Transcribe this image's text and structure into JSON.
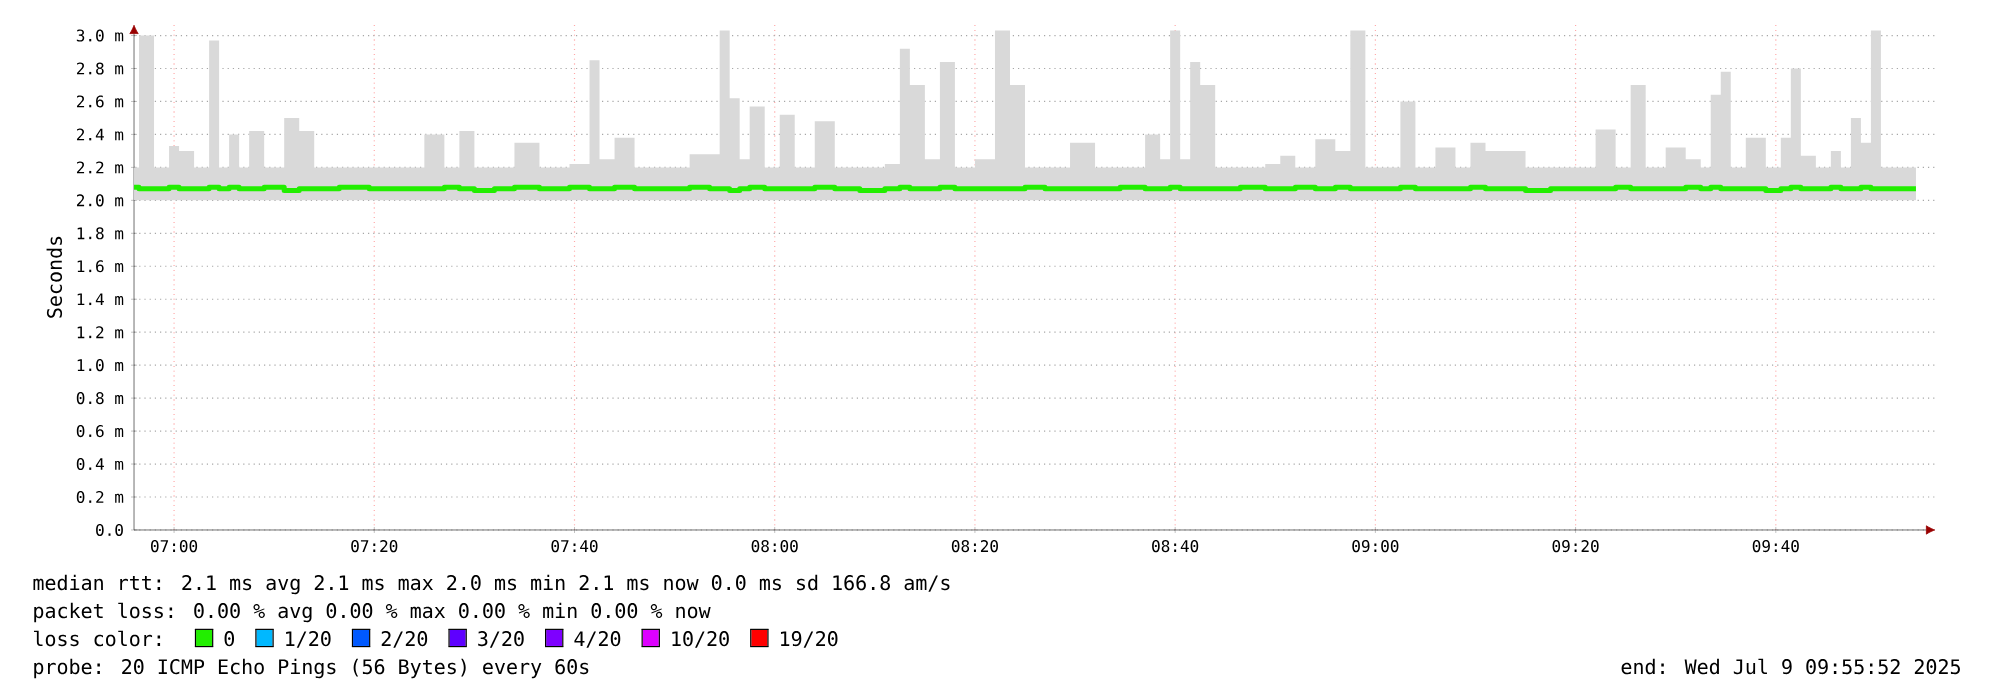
{
  "chart_data": {
    "type": "line",
    "ylabel": "Seconds",
    "legend": "bottom",
    "legend_title": "loss color:",
    "grid": true,
    "xlim": [
      "2025-07-09T06:56",
      "2025-07-09T09:56"
    ],
    "xticks": [
      {
        "value": "2025-07-09T07:00",
        "label": "07:00"
      },
      {
        "value": "2025-07-09T07:20",
        "label": "07:20"
      },
      {
        "value": "2025-07-09T07:40",
        "label": "07:40"
      },
      {
        "value": "2025-07-09T08:00",
        "label": "08:00"
      },
      {
        "value": "2025-07-09T08:20",
        "label": "08:20"
      },
      {
        "value": "2025-07-09T08:40",
        "label": "08:40"
      },
      {
        "value": "2025-07-09T09:00",
        "label": "09:00"
      },
      {
        "value": "2025-07-09T09:20",
        "label": "09:20"
      },
      {
        "value": "2025-07-09T09:40",
        "label": "09:40"
      }
    ],
    "ylim": [
      0,
      3.07
    ],
    "yticks": [
      {
        "value": 0,
        "label": "0.0"
      },
      {
        "value": 0.2,
        "label": "0.2 m"
      },
      {
        "value": 0.4,
        "label": "0.4 m"
      },
      {
        "value": 0.6,
        "label": "0.6 m"
      },
      {
        "value": 0.8,
        "label": "0.8 m"
      },
      {
        "value": 1.0,
        "label": "1.0 m"
      },
      {
        "value": 1.2,
        "label": "1.2 m"
      },
      {
        "value": 1.4,
        "label": "1.4 m"
      },
      {
        "value": 1.6,
        "label": "1.6 m"
      },
      {
        "value": 1.8,
        "label": "1.8 m"
      },
      {
        "value": 2.0,
        "label": "2.0 m"
      },
      {
        "value": 2.2,
        "label": "2.2 m"
      },
      {
        "value": 2.4,
        "label": "2.4 m"
      },
      {
        "value": 2.6,
        "label": "2.6 m"
      },
      {
        "value": 2.8,
        "label": "2.8 m"
      },
      {
        "value": 3.0,
        "label": "3.0 m"
      }
    ],
    "x": [
      "2025-07-09T06:56",
      "2025-07-09T06:57",
      "2025-07-09T06:59",
      "2025-07-09T07:00",
      "2025-07-09T07:01",
      "2025-07-09T07:03",
      "2025-07-09T07:04",
      "2025-07-09T07:05",
      "2025-07-09T07:06",
      "2025-07-09T07:07",
      "2025-07-09T07:08",
      "2025-07-09T07:10",
      "2025-07-09T07:12",
      "2025-07-09T07:13",
      "2025-07-09T07:15",
      "2025-07-09T07:18",
      "2025-07-09T07:21",
      "2025-07-09T07:24",
      "2025-07-09T07:26",
      "2025-07-09T07:28",
      "2025-07-09T07:29",
      "2025-07-09T07:31",
      "2025-07-09T07:33",
      "2025-07-09T07:35",
      "2025-07-09T07:38",
      "2025-07-09T07:41",
      "2025-07-09T07:42",
      "2025-07-09T07:43",
      "2025-07-09T07:45",
      "2025-07-09T07:47",
      "2025-07-09T07:50",
      "2025-07-09T07:53",
      "2025-07-09T07:54",
      "2025-07-09T07:55",
      "2025-07-09T07:56",
      "2025-07-09T07:57",
      "2025-07-09T07:58",
      "2025-07-09T08:00",
      "2025-07-09T08:01",
      "2025-07-09T08:03",
      "2025-07-09T08:05",
      "2025-07-09T08:07",
      "2025-07-09T08:10",
      "2025-07-09T08:12",
      "2025-07-09T08:13",
      "2025-07-09T08:14",
      "2025-07-09T08:16",
      "2025-07-09T08:17",
      "2025-07-09T08:19",
      "2025-07-09T08:21",
      "2025-07-09T08:23",
      "2025-07-09T08:24",
      "2025-07-09T08:26",
      "2025-07-09T08:28",
      "2025-07-09T08:31",
      "2025-07-09T08:33",
      "2025-07-09T08:36",
      "2025-07-09T08:38",
      "2025-07-09T08:39",
      "2025-07-09T08:40",
      "2025-07-09T08:41",
      "2025-07-09T08:42",
      "2025-07-09T08:43",
      "2025-07-09T08:45",
      "2025-07-09T08:48",
      "2025-07-09T08:50",
      "2025-07-09T08:51",
      "2025-07-09T08:53",
      "2025-07-09T08:55",
      "2025-07-09T08:57",
      "2025-07-09T08:58",
      "2025-07-09T09:00",
      "2025-07-09T09:02",
      "2025-07-09T09:03",
      "2025-07-09T09:05",
      "2025-07-09T09:07",
      "2025-07-09T09:09",
      "2025-07-09T09:10",
      "2025-07-09T09:12",
      "2025-07-09T09:14",
      "2025-07-09T09:16",
      "2025-07-09T09:19",
      "2025-07-09T09:21",
      "2025-07-09T09:23",
      "2025-07-09T09:25",
      "2025-07-09T09:26",
      "2025-07-09T09:28",
      "2025-07-09T09:30",
      "2025-07-09T09:32",
      "2025-07-09T09:33",
      "2025-07-09T09:34",
      "2025-07-09T09:35",
      "2025-07-09T09:36",
      "2025-07-09T09:38",
      "2025-07-09T09:40",
      "2025-07-09T09:41",
      "2025-07-09T09:42",
      "2025-07-09T09:43",
      "2025-07-09T09:45",
      "2025-07-09T09:46",
      "2025-07-09T09:47",
      "2025-07-09T09:48",
      "2025-07-09T09:49",
      "2025-07-09T09:50",
      "2025-07-09T09:51",
      "2025-07-09T09:54"
    ],
    "series": [
      {
        "name": "0",
        "color": "#22ee00",
        "values": [
          2.08,
          2.07,
          2.07,
          2.08,
          2.07,
          2.07,
          2.08,
          2.07,
          2.08,
          2.07,
          2.07,
          2.08,
          2.06,
          2.07,
          2.07,
          2.08,
          2.07,
          2.07,
          2.07,
          2.08,
          2.07,
          2.06,
          2.07,
          2.08,
          2.07,
          2.08,
          2.07,
          2.07,
          2.08,
          2.07,
          2.07,
          2.08,
          2.07,
          2.07,
          2.06,
          2.07,
          2.08,
          2.07,
          2.07,
          2.07,
          2.08,
          2.07,
          2.06,
          2.07,
          2.08,
          2.07,
          2.07,
          2.08,
          2.07,
          2.07,
          2.07,
          2.07,
          2.08,
          2.07,
          2.07,
          2.07,
          2.08,
          2.07,
          2.07,
          2.08,
          2.07,
          2.07,
          2.07,
          2.07,
          2.08,
          2.07,
          2.07,
          2.08,
          2.07,
          2.08,
          2.07,
          2.07,
          2.07,
          2.08,
          2.07,
          2.07,
          2.07,
          2.08,
          2.07,
          2.07,
          2.06,
          2.07,
          2.07,
          2.07,
          2.08,
          2.07,
          2.07,
          2.07,
          2.08,
          2.07,
          2.08,
          2.07,
          2.07,
          2.07,
          2.06,
          2.07,
          2.08,
          2.07,
          2.07,
          2.08,
          2.07,
          2.07,
          2.08,
          2.07,
          2.07,
          2.07
        ],
        "lower": [
          2.0,
          2.0,
          2.0,
          2.0,
          2.0,
          2.0,
          2.0,
          2.0,
          2.0,
          2.0,
          2.0,
          2.0,
          2.0,
          2.0,
          2.0,
          2.0,
          2.0,
          2.0,
          2.0,
          2.0,
          2.0,
          2.0,
          2.0,
          2.0,
          2.0,
          2.0,
          2.0,
          2.0,
          2.0,
          2.0,
          2.0,
          2.0,
          2.0,
          2.0,
          2.0,
          2.0,
          2.0,
          2.0,
          2.0,
          2.0,
          2.0,
          2.0,
          2.0,
          2.0,
          2.0,
          2.0,
          2.0,
          2.0,
          2.0,
          2.0,
          2.0,
          2.0,
          2.0,
          2.0,
          2.0,
          2.0,
          2.0,
          2.0,
          2.0,
          2.0,
          2.0,
          2.0,
          2.0,
          2.0,
          2.0,
          2.0,
          2.0,
          2.0,
          2.0,
          2.0,
          2.0,
          2.0,
          2.0,
          2.0,
          2.0,
          2.0,
          2.0,
          2.0,
          2.0,
          2.0,
          2.0,
          2.0,
          2.0,
          2.0,
          2.0,
          2.0,
          2.0,
          2.0,
          2.0,
          2.0,
          2.0,
          2.0,
          2.0,
          2.0,
          2.0,
          2.0,
          2.0,
          2.0,
          2.0,
          2.0,
          2.0,
          2.0,
          2.0,
          2.0,
          2.0,
          2.0
        ],
        "upper": [
          2.2,
          3.0,
          2.2,
          2.33,
          2.3,
          2.2,
          2.97,
          2.2,
          2.4,
          2.2,
          2.42,
          2.2,
          2.5,
          2.42,
          2.2,
          2.2,
          2.2,
          2.2,
          2.4,
          2.2,
          2.42,
          2.2,
          2.2,
          2.35,
          2.2,
          2.22,
          2.85,
          2.25,
          2.38,
          2.2,
          2.2,
          2.28,
          2.28,
          3.03,
          2.62,
          2.25,
          2.57,
          2.2,
          2.52,
          2.2,
          2.48,
          2.2,
          2.2,
          2.22,
          2.92,
          2.7,
          2.25,
          2.84,
          2.2,
          2.25,
          3.03,
          2.7,
          2.2,
          2.2,
          2.35,
          2.2,
          2.2,
          2.4,
          2.25,
          3.03,
          2.25,
          2.84,
          2.7,
          2.2,
          2.2,
          2.22,
          2.27,
          2.2,
          2.37,
          2.3,
          3.03,
          2.2,
          2.2,
          2.6,
          2.2,
          2.32,
          2.2,
          2.35,
          2.3,
          2.3,
          2.2,
          2.2,
          2.2,
          2.43,
          2.2,
          2.7,
          2.2,
          2.32,
          2.25,
          2.2,
          2.64,
          2.78,
          2.2,
          2.38,
          2.2,
          2.38,
          2.8,
          2.27,
          2.2,
          2.3,
          2.2,
          2.5,
          2.35,
          3.03,
          2.2,
          2.2
        ]
      },
      {
        "name": "1/20",
        "color": "#00b8ff",
        "values": [
          null,
          null,
          null,
          null,
          null,
          null,
          null,
          null,
          null,
          null,
          null,
          null,
          null,
          null,
          null,
          null,
          null,
          null,
          null,
          null,
          null,
          null,
          null,
          null,
          null,
          null,
          null,
          null,
          null,
          null,
          null,
          null,
          null,
          null,
          null,
          null,
          null,
          null,
          null,
          null,
          null,
          null,
          null,
          null,
          null,
          null,
          null,
          null,
          null,
          null,
          null,
          null,
          null,
          null,
          null,
          null,
          null,
          null,
          null,
          null,
          null,
          null,
          null,
          null,
          null,
          null,
          null,
          null,
          null,
          null,
          null,
          null,
          null,
          null,
          null,
          null,
          null,
          null,
          null,
          null,
          null,
          null,
          null,
          null,
          null,
          null,
          null,
          null,
          null,
          null,
          null,
          null,
          null,
          null,
          null,
          null,
          null,
          null,
          null,
          null,
          null,
          null,
          null,
          null,
          null,
          null
        ]
      },
      {
        "name": "2/20",
        "color": "#0059ff",
        "values": [
          null,
          null,
          null,
          null,
          null,
          null,
          null,
          null,
          null,
          null,
          null,
          null,
          null,
          null,
          null,
          null,
          null,
          null,
          null,
          null,
          null,
          null,
          null,
          null,
          null,
          null,
          null,
          null,
          null,
          null,
          null,
          null,
          null,
          null,
          null,
          null,
          null,
          null,
          null,
          null,
          null,
          null,
          null,
          null,
          null,
          null,
          null,
          null,
          null,
          null,
          null,
          null,
          null,
          null,
          null,
          null,
          null,
          null,
          null,
          null,
          null,
          null,
          null,
          null,
          null,
          null,
          null,
          null,
          null,
          null,
          null,
          null,
          null,
          null,
          null,
          null,
          null,
          null,
          null,
          null,
          null,
          null,
          null,
          null,
          null,
          null,
          null,
          null,
          null,
          null,
          null,
          null,
          null,
          null,
          null,
          null,
          null,
          null,
          null,
          null,
          null,
          null,
          null,
          null,
          null,
          null
        ]
      },
      {
        "name": "3/20",
        "color": "#5e00ff",
        "values": [
          null,
          null,
          null,
          null,
          null,
          null,
          null,
          null,
          null,
          null,
          null,
          null,
          null,
          null,
          null,
          null,
          null,
          null,
          null,
          null,
          null,
          null,
          null,
          null,
          null,
          null,
          null,
          null,
          null,
          null,
          null,
          null,
          null,
          null,
          null,
          null,
          null,
          null,
          null,
          null,
          null,
          null,
          null,
          null,
          null,
          null,
          null,
          null,
          null,
          null,
          null,
          null,
          null,
          null,
          null,
          null,
          null,
          null,
          null,
          null,
          null,
          null,
          null,
          null,
          null,
          null,
          null,
          null,
          null,
          null,
          null,
          null,
          null,
          null,
          null,
          null,
          null,
          null,
          null,
          null,
          null,
          null,
          null,
          null,
          null,
          null,
          null,
          null,
          null,
          null,
          null,
          null,
          null,
          null,
          null,
          null,
          null,
          null,
          null,
          null,
          null,
          null,
          null,
          null,
          null,
          null
        ]
      },
      {
        "name": "4/20",
        "color": "#7e00ff",
        "values": [
          null,
          null,
          null,
          null,
          null,
          null,
          null,
          null,
          null,
          null,
          null,
          null,
          null,
          null,
          null,
          null,
          null,
          null,
          null,
          null,
          null,
          null,
          null,
          null,
          null,
          null,
          null,
          null,
          null,
          null,
          null,
          null,
          null,
          null,
          null,
          null,
          null,
          null,
          null,
          null,
          null,
          null,
          null,
          null,
          null,
          null,
          null,
          null,
          null,
          null,
          null,
          null,
          null,
          null,
          null,
          null,
          null,
          null,
          null,
          null,
          null,
          null,
          null,
          null,
          null,
          null,
          null,
          null,
          null,
          null,
          null,
          null,
          null,
          null,
          null,
          null,
          null,
          null,
          null,
          null,
          null,
          null,
          null,
          null,
          null,
          null,
          null,
          null,
          null,
          null,
          null,
          null,
          null,
          null,
          null,
          null,
          null,
          null,
          null,
          null,
          null,
          null,
          null,
          null,
          null,
          null
        ]
      },
      {
        "name": "10/20",
        "color": "#dd00ff",
        "values": [
          null,
          null,
          null,
          null,
          null,
          null,
          null,
          null,
          null,
          null,
          null,
          null,
          null,
          null,
          null,
          null,
          null,
          null,
          null,
          null,
          null,
          null,
          null,
          null,
          null,
          null,
          null,
          null,
          null,
          null,
          null,
          null,
          null,
          null,
          null,
          null,
          null,
          null,
          null,
          null,
          null,
          null,
          null,
          null,
          null,
          null,
          null,
          null,
          null,
          null,
          null,
          null,
          null,
          null,
          null,
          null,
          null,
          null,
          null,
          null,
          null,
          null,
          null,
          null,
          null,
          null,
          null,
          null,
          null,
          null,
          null,
          null,
          null,
          null,
          null,
          null,
          null,
          null,
          null,
          null,
          null,
          null,
          null,
          null,
          null,
          null,
          null,
          null,
          null,
          null,
          null,
          null,
          null,
          null,
          null,
          null,
          null,
          null,
          null,
          null,
          null,
          null,
          null,
          null,
          null,
          null
        ]
      },
      {
        "name": "19/20",
        "color": "#ff0000",
        "values": [
          null,
          null,
          null,
          null,
          null,
          null,
          null,
          null,
          null,
          null,
          null,
          null,
          null,
          null,
          null,
          null,
          null,
          null,
          null,
          null,
          null,
          null,
          null,
          null,
          null,
          null,
          null,
          null,
          null,
          null,
          null,
          null,
          null,
          null,
          null,
          null,
          null,
          null,
          null,
          null,
          null,
          null,
          null,
          null,
          null,
          null,
          null,
          null,
          null,
          null,
          null,
          null,
          null,
          null,
          null,
          null,
          null,
          null,
          null,
          null,
          null,
          null,
          null,
          null,
          null,
          null,
          null,
          null,
          null,
          null,
          null,
          null,
          null,
          null,
          null,
          null,
          null,
          null,
          null,
          null,
          null,
          null,
          null,
          null,
          null,
          null,
          null,
          null,
          null,
          null,
          null,
          null,
          null,
          null,
          null,
          null,
          null,
          null,
          null,
          null,
          null,
          null,
          null,
          null,
          null,
          null
        ]
      }
    ],
    "annotations": [
      "median rtt:  2.1 ms avg  2.1 ms max  2.0 ms min  2.1 ms now  0.0 ms sd  166.8   am/s",
      "packet loss: 0.00 % avg  0.00 % max  0.00 % min  0.00 % now",
      "probe:       20 ICMP Echo Pings (56 Bytes) every 60s",
      "end: Wed Jul  9 09:55:52 2025"
    ]
  }
}
